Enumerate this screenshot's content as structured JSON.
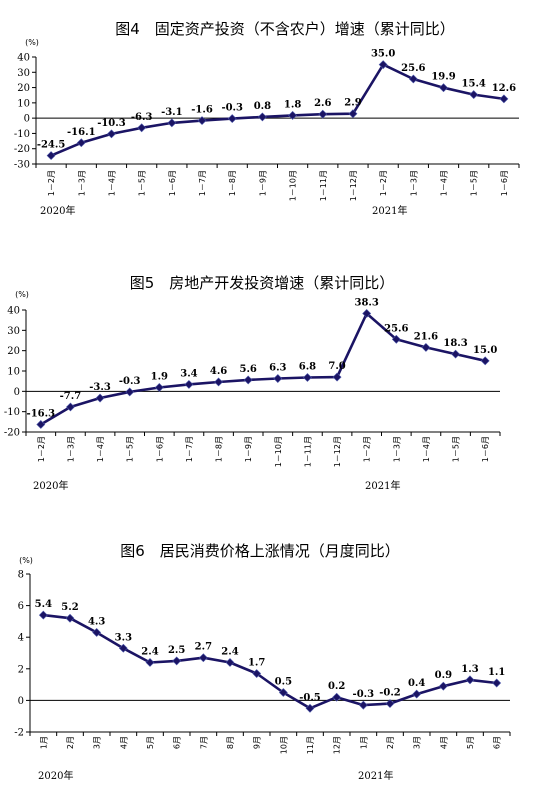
{
  "chart_data": [
    {
      "type": "line",
      "title": "图4　固定资产投资（不含农户）增速（累计同比）",
      "unit": "(%)",
      "ylim": [
        -30,
        40
      ],
      "yticks": [
        -30,
        -20,
        -10,
        0,
        10,
        20,
        30,
        40
      ],
      "categories": [
        "1－2月",
        "1－3月",
        "1－4月",
        "1－5月",
        "1－6月",
        "1－7月",
        "1－8月",
        "1－9月",
        "1－10月",
        "1－11月",
        "1－12月",
        "1－2月",
        "1－3月",
        "1－4月",
        "1－5月",
        "1－6月"
      ],
      "values": [
        -24.5,
        -16.1,
        -10.3,
        -6.3,
        -3.1,
        -1.6,
        -0.3,
        0.8,
        1.8,
        2.6,
        2.9,
        35.0,
        25.6,
        19.9,
        15.4,
        12.6
      ],
      "value_labels": [
        "-24.5",
        "-16.1",
        "-10.3",
        "-6.3",
        "-3.1",
        "-1.6",
        "-0.3",
        "0.8",
        "1.8",
        "2.6",
        "2.9",
        "35.0",
        "25.6",
        "19.9",
        "15.4",
        "12.6"
      ],
      "years": [
        "2020年",
        "2021年"
      ],
      "legend": "none",
      "grid": false
    },
    {
      "type": "line",
      "title": "图5　房地产开发投资增速（累计同比）",
      "unit": "(%)",
      "ylim": [
        -20,
        40
      ],
      "yticks": [
        -20,
        -10,
        0,
        10,
        20,
        30,
        40
      ],
      "categories": [
        "1－2月",
        "1－3月",
        "1－4月",
        "1－5月",
        "1－6月",
        "1－7月",
        "1－8月",
        "1－9月",
        "1－10月",
        "1－11月",
        "1－12月",
        "1－2月",
        "1－3月",
        "1－4月",
        "1－5月",
        "1－6月"
      ],
      "values": [
        -16.3,
        -7.7,
        -3.3,
        -0.3,
        1.9,
        3.4,
        4.6,
        5.6,
        6.3,
        6.8,
        7.0,
        38.3,
        25.6,
        21.6,
        18.3,
        15.0
      ],
      "value_labels": [
        "-16.3",
        "-7.7",
        "-3.3",
        "-0.3",
        "1.9",
        "3.4",
        "4.6",
        "5.6",
        "6.3",
        "6.8",
        "7.0",
        "38.3",
        "25.6",
        "21.6",
        "18.3",
        "15.0"
      ],
      "years": [
        "2020年",
        "2021年"
      ],
      "legend": "none",
      "grid": false
    },
    {
      "type": "line",
      "title": "图6　居民消费价格上涨情况（月度同比）",
      "unit": "(%)",
      "ylim": [
        -2,
        8
      ],
      "yticks": [
        -2,
        0,
        2,
        4,
        6,
        8
      ],
      "categories": [
        "1月",
        "2月",
        "3月",
        "4月",
        "5月",
        "6月",
        "7月",
        "8月",
        "9月",
        "10月",
        "11月",
        "12月",
        "1月",
        "2月",
        "3月",
        "4月",
        "5月",
        "6月"
      ],
      "values": [
        5.4,
        5.2,
        4.3,
        3.3,
        2.4,
        2.5,
        2.7,
        2.4,
        1.7,
        0.5,
        -0.5,
        0.2,
        -0.3,
        -0.2,
        0.4,
        0.9,
        1.3,
        1.1
      ],
      "value_labels": [
        "5.4",
        "5.2",
        "4.3",
        "3.3",
        "2.4",
        "2.5",
        "2.7",
        "2.4",
        "1.7",
        "0.5",
        "-0.5",
        "0.2",
        "-0.3",
        "-0.2",
        "0.4",
        "0.9",
        "1.3",
        "1.1"
      ],
      "years": [
        "2020年",
        "2021年"
      ],
      "legend": "none",
      "grid": false
    }
  ],
  "colors": {
    "line": "#1b1464",
    "axis": "#000000"
  }
}
